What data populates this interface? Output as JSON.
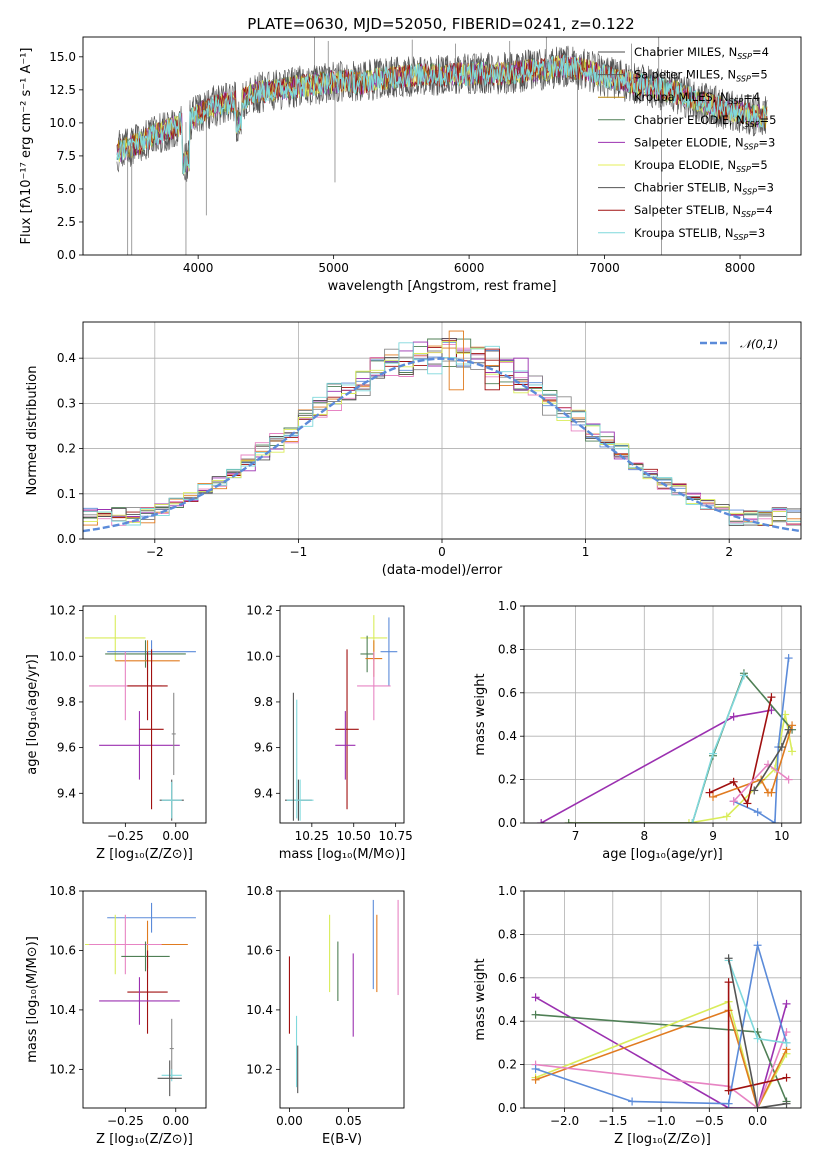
{
  "figure": {
    "title": "PLATE=0630, MJD=52050, FIBERID=0241, z=0.122"
  },
  "chart_data": [
    {
      "id": "spectrum",
      "type": "line",
      "xlabel": "wavelength [Angstrom, rest frame]",
      "ylabel": "Flux [fλ10⁻¹⁷ erg cm⁻² s⁻¹ A⁻¹]",
      "xlim": [
        3150,
        8450
      ],
      "ylim": [
        0,
        16.5
      ],
      "xticks": [
        4000,
        5000,
        6000,
        7000,
        8000
      ],
      "yticks": [
        0.0,
        2.5,
        5.0,
        7.5,
        10.0,
        12.5,
        15.0
      ],
      "grid": false,
      "legend_position": "upper-right",
      "series": [
        {
          "name": "Chabrier MILES, N",
          "sub": "SSP",
          "suffix": "=4",
          "color": "#4b4b4b"
        },
        {
          "name": "Salpeter MILES, N",
          "sub": "SSP",
          "suffix": "=5",
          "color": "#5a5a5a"
        },
        {
          "name": "Kroupa MILES, N",
          "sub": "SSP",
          "suffix": "=4",
          "color": "#b8860b"
        },
        {
          "name": "Chabrier ELODIE, N",
          "sub": "SSP",
          "suffix": "=5",
          "color": "#4f7f55"
        },
        {
          "name": "Salpeter ELODIE, N",
          "sub": "SSP",
          "suffix": "=3",
          "color": "#9b30b0"
        },
        {
          "name": "Kroupa ELODIE, N",
          "sub": "SSP",
          "suffix": "=5",
          "color": "#e5ef5a"
        },
        {
          "name": "Chabrier STELIB, N",
          "sub": "SSP",
          "suffix": "=3",
          "color": "#555555"
        },
        {
          "name": "Salpeter STELIB, N",
          "sub": "SSP",
          "suffix": "=4",
          "color": "#a01010"
        },
        {
          "name": "Kroupa STELIB, N",
          "sub": "SSP",
          "suffix": "=3",
          "color": "#7fd8dc"
        }
      ],
      "continuum": [
        [
          3400,
          7.8
        ],
        [
          3500,
          8.2
        ],
        [
          3600,
          8.6
        ],
        [
          3700,
          9.2
        ],
        [
          3800,
          9.6
        ],
        [
          3900,
          10.0
        ],
        [
          4000,
          10.6
        ],
        [
          4100,
          11.2
        ],
        [
          4200,
          11.5
        ],
        [
          4300,
          11.6
        ],
        [
          4400,
          12.2
        ],
        [
          4500,
          12.4
        ],
        [
          4600,
          12.5
        ],
        [
          4700,
          12.7
        ],
        [
          4800,
          12.8
        ],
        [
          4900,
          13.0
        ],
        [
          5000,
          13.1
        ],
        [
          5100,
          13.2
        ],
        [
          5200,
          13.0
        ],
        [
          5300,
          13.3
        ],
        [
          5400,
          13.4
        ],
        [
          5500,
          13.5
        ],
        [
          5600,
          13.6
        ],
        [
          5700,
          13.7
        ],
        [
          5800,
          13.6
        ],
        [
          5900,
          13.7
        ],
        [
          6000,
          13.7
        ],
        [
          6100,
          13.8
        ],
        [
          6200,
          13.7
        ],
        [
          6300,
          13.8
        ],
        [
          6400,
          13.9
        ],
        [
          6500,
          14.0
        ],
        [
          6600,
          14.1
        ],
        [
          6700,
          14.3
        ],
        [
          6800,
          14.1
        ],
        [
          6900,
          13.9
        ],
        [
          7000,
          13.5
        ],
        [
          7100,
          13.3
        ],
        [
          7200,
          13.0
        ],
        [
          7300,
          12.8
        ],
        [
          7400,
          12.6
        ],
        [
          7500,
          12.4
        ],
        [
          7600,
          12.0
        ],
        [
          7700,
          11.6
        ],
        [
          7800,
          11.3
        ],
        [
          7900,
          11.0
        ],
        [
          8000,
          10.8
        ],
        [
          8100,
          10.6
        ],
        [
          8200,
          10.4
        ]
      ],
      "spikes": [
        [
          3480,
          0
        ],
        [
          3510,
          0
        ],
        [
          3910,
          0
        ],
        [
          4060,
          3.0
        ],
        [
          4860,
          16.5
        ],
        [
          4960,
          16.2
        ],
        [
          5010,
          5.5
        ],
        [
          5580,
          16.3
        ],
        [
          5900,
          16.0
        ],
        [
          6300,
          16.2
        ],
        [
          6570,
          16.5
        ],
        [
          6580,
          14.7
        ],
        [
          6800,
          0
        ],
        [
          7200,
          16.0
        ],
        [
          7400,
          16.5
        ],
        [
          7420,
          0
        ]
      ]
    },
    {
      "id": "residuals",
      "type": "step",
      "xlabel": "(data-model)/error",
      "ylabel": "Normed distribution",
      "xlim": [
        -2.5,
        2.5
      ],
      "ylim": [
        0,
        0.48
      ],
      "xticks": [
        -2,
        -1,
        0,
        1,
        2
      ],
      "yticks": [
        0.0,
        0.1,
        0.2,
        0.3,
        0.4
      ],
      "grid": true,
      "legend_position": "upper-right",
      "reference": {
        "label": "𝒩(0,1)",
        "color": "#5b8bd9",
        "mean": 0,
        "sd": 1
      },
      "bin_width": 0.1,
      "series_colors": [
        "#5b8bd9",
        "#e07b20",
        "#4f7f55",
        "#a01010",
        "#9b30b0",
        "#8a8a8a",
        "#e784c3",
        "#555555",
        "#d9ec5a",
        "#7fd8dc"
      ],
      "peak_spikes": [
        [
          0.1,
          0.46
        ],
        [
          0.35,
          0.42
        ],
        [
          0.55,
          0.4
        ]
      ]
    },
    {
      "id": "age-vs-Z",
      "type": "errorbar",
      "xlabel": "Z [log₁₀(Z/Z⊙)]",
      "ylabel": "age  [log₁₀(age/yr)]",
      "xlim": [
        -0.46,
        0.15
      ],
      "ylim": [
        9.27,
        10.22
      ],
      "xticks": [
        -0.25,
        0.0
      ],
      "yticks": [
        9.4,
        9.6,
        9.8,
        10.0,
        10.2
      ],
      "grid": false,
      "points": [
        {
          "x": -0.3,
          "y": 10.08,
          "xerr": 0.15,
          "yerr": 0.1,
          "color": "#d9ec5a"
        },
        {
          "x": -0.12,
          "y": 10.02,
          "xerr": 0.22,
          "yerr": 0.05,
          "color": "#5b8bd9"
        },
        {
          "x": -0.15,
          "y": 10.01,
          "xerr": 0.2,
          "yerr": 0.06,
          "color": "#4f7f55"
        },
        {
          "x": -0.14,
          "y": 9.98,
          "xerr": 0.16,
          "yerr": 0.09,
          "color": "#e07b20"
        },
        {
          "x": -0.25,
          "y": 9.87,
          "xerr": 0.18,
          "yerr": 0.15,
          "color": "#e784c3"
        },
        {
          "x": -0.14,
          "y": 9.87,
          "xerr": 0.1,
          "yerr": 0.15,
          "color": "#a01010"
        },
        {
          "x": -0.18,
          "y": 9.61,
          "xerr": 0.2,
          "yerr": 0.15,
          "color": "#9b30b0"
        },
        {
          "x": -0.12,
          "y": 9.68,
          "xerr": 0.06,
          "yerr": 0.35,
          "color": "#a01010"
        },
        {
          "x": -0.02,
          "y": 9.37,
          "xerr": 0.06,
          "yerr": 0.09,
          "color": "#555555"
        },
        {
          "x": -0.02,
          "y": 9.37,
          "xerr": 0.05,
          "yerr": 0.08,
          "color": "#7fd8dc"
        },
        {
          "x": -0.01,
          "y": 9.66,
          "xerr": 0.01,
          "yerr": 0.18,
          "color": "#8a8a8a"
        }
      ]
    },
    {
      "id": "age-vs-mass",
      "type": "errorbar",
      "xlabel": "mass [log₁₀(M/M⊙)]",
      "ylabel": "",
      "xlim": [
        10.06,
        10.8
      ],
      "ylim": [
        9.27,
        10.22
      ],
      "xticks": [
        10.25,
        10.5,
        10.75
      ],
      "yticks": [
        9.4,
        9.6,
        9.8,
        10.0,
        10.2
      ],
      "grid": false,
      "points": [
        {
          "x": 10.62,
          "y": 10.08,
          "xerr": 0.08,
          "yerr": 0.1,
          "color": "#d9ec5a"
        },
        {
          "x": 10.71,
          "y": 10.02,
          "xerr": 0.05,
          "yerr": 0.15,
          "color": "#5b8bd9"
        },
        {
          "x": 10.58,
          "y": 10.01,
          "xerr": 0.04,
          "yerr": 0.08,
          "color": "#4f7f55"
        },
        {
          "x": 10.62,
          "y": 9.99,
          "xerr": 0.05,
          "yerr": 0.08,
          "color": "#e07b20"
        },
        {
          "x": 10.62,
          "y": 9.87,
          "xerr": 0.1,
          "yerr": 0.15,
          "color": "#e784c3"
        },
        {
          "x": 10.46,
          "y": 9.68,
          "xerr": 0.07,
          "yerr": 0.35,
          "color": "#a01010"
        },
        {
          "x": 10.45,
          "y": 9.61,
          "xerr": 0.06,
          "yerr": 0.15,
          "color": "#9b30b0"
        },
        {
          "x": 10.17,
          "y": 9.37,
          "xerr": 0.08,
          "yerr": 0.09,
          "color": "#555555"
        },
        {
          "x": 10.18,
          "y": 9.37,
          "xerr": 0.08,
          "yerr": 0.09,
          "color": "#7fd8dc"
        },
        {
          "x": 10.14,
          "y": 9.56,
          "xerr": 0.002,
          "yerr": 0.28,
          "color": "#555555"
        },
        {
          "x": 10.16,
          "y": 9.55,
          "xerr": 0.002,
          "yerr": 0.26,
          "color": "#7fd8dc"
        }
      ]
    },
    {
      "id": "mass-weight-vs-age",
      "type": "line",
      "xlabel": "age  [log₁₀(age/yr)]",
      "ylabel": "mass weight",
      "xlim": [
        6.25,
        10.28
      ],
      "ylim": [
        0,
        1.0
      ],
      "xticks": [
        7,
        8,
        9,
        10
      ],
      "yticks": [
        0.0,
        0.2,
        0.4,
        0.6,
        0.8,
        1.0
      ],
      "grid": true,
      "series": [
        {
          "color": "#9b30b0",
          "x": [
            6.5,
            9.3,
            9.85
          ],
          "y": [
            0.0,
            0.49,
            0.52
          ]
        },
        {
          "color": "#d9ec5a",
          "x": [
            6.9,
            8.65,
            9.2,
            9.9,
            10.05,
            10.15
          ],
          "y": [
            0.0,
            0.0,
            0.03,
            0.25,
            0.5,
            0.33
          ]
        },
        {
          "color": "#4f7f55",
          "x": [
            6.9,
            8.7,
            9.0,
            9.45,
            10.15
          ],
          "y": [
            0.0,
            0.0,
            0.31,
            0.69,
            0.43
          ]
        },
        {
          "color": "#7fd8dc",
          "x": [
            8.7,
            9.0,
            9.45
          ],
          "y": [
            0.0,
            0.32,
            0.68
          ]
        },
        {
          "color": "#5b8bd9",
          "x": [
            9.3,
            9.65,
            9.9,
            9.95,
            10.1
          ],
          "y": [
            0.1,
            0.05,
            0.0,
            0.35,
            0.76
          ]
        },
        {
          "color": "#a01010",
          "x": [
            8.95,
            9.3,
            9.5,
            9.85
          ],
          "y": [
            0.14,
            0.19,
            0.09,
            0.58
          ]
        },
        {
          "color": "#e07b20",
          "x": [
            9.0,
            9.7,
            9.8,
            9.85,
            10.15
          ],
          "y": [
            0.12,
            0.2,
            0.14,
            0.14,
            0.45
          ]
        },
        {
          "color": "#e784c3",
          "x": [
            9.3,
            9.8,
            10.1
          ],
          "y": [
            0.1,
            0.27,
            0.2
          ]
        },
        {
          "color": "#555555",
          "x": [
            9.6,
            10.0,
            10.1
          ],
          "y": [
            0.15,
            0.35,
            0.43
          ]
        }
      ]
    },
    {
      "id": "mass-vs-Z",
      "type": "errorbar",
      "xlabel": "Z [log₁₀(Z/Z⊙)]",
      "ylabel": "mass [log₁₀(M/M⊙)]",
      "xlim": [
        -0.46,
        0.15
      ],
      "ylim": [
        10.07,
        10.8
      ],
      "xticks": [
        -0.25,
        0.0
      ],
      "yticks": [
        10.2,
        10.4,
        10.6,
        10.8
      ],
      "grid": false,
      "points": [
        {
          "x": -0.12,
          "y": 10.71,
          "xerr": 0.22,
          "yerr": 0.05,
          "color": "#5b8bd9"
        },
        {
          "x": -0.3,
          "y": 10.62,
          "xerr": 0.15,
          "yerr": 0.1,
          "color": "#d9ec5a"
        },
        {
          "x": -0.14,
          "y": 10.62,
          "xerr": 0.2,
          "yerr": 0.08,
          "color": "#e07b20"
        },
        {
          "x": -0.25,
          "y": 10.62,
          "xerr": 0.18,
          "yerr": 0.1,
          "color": "#e784c3"
        },
        {
          "x": -0.15,
          "y": 10.58,
          "xerr": 0.12,
          "yerr": 0.05,
          "color": "#4f7f55"
        },
        {
          "x": -0.14,
          "y": 10.46,
          "xerr": 0.1,
          "yerr": 0.14,
          "color": "#a01010"
        },
        {
          "x": -0.18,
          "y": 10.43,
          "xerr": 0.2,
          "yerr": 0.08,
          "color": "#9b30b0"
        },
        {
          "x": -0.02,
          "y": 10.27,
          "xerr": 0.01,
          "yerr": 0.1,
          "color": "#8a8a8a"
        },
        {
          "x": -0.02,
          "y": 10.18,
          "xerr": 0.05,
          "yerr": 0.02,
          "color": "#7fd8dc"
        },
        {
          "x": -0.03,
          "y": 10.17,
          "xerr": 0.06,
          "yerr": 0.06,
          "color": "#555555"
        }
      ]
    },
    {
      "id": "mass-vs-EBV",
      "type": "errorbar",
      "xlabel": "E(B-V)",
      "ylabel": "",
      "xlim": [
        -0.008,
        0.097
      ],
      "ylim": [
        10.07,
        10.8
      ],
      "xticks": [
        0.0,
        0.05
      ],
      "yticks": [
        10.2,
        10.4,
        10.6,
        10.8
      ],
      "grid": false,
      "points": [
        {
          "x": 0.0,
          "y": 10.45,
          "xerr": 0,
          "yerr": 0.13,
          "color": "#a01010"
        },
        {
          "x": 0.006,
          "y": 10.26,
          "xerr": 0,
          "yerr": 0.12,
          "color": "#7fd8dc"
        },
        {
          "x": 0.007,
          "y": 10.2,
          "xerr": 0,
          "yerr": 0.08,
          "color": "#555555"
        },
        {
          "x": 0.034,
          "y": 10.59,
          "xerr": 0,
          "yerr": 0.13,
          "color": "#d9ec5a"
        },
        {
          "x": 0.041,
          "y": 10.53,
          "xerr": 0,
          "yerr": 0.1,
          "color": "#4f7f55"
        },
        {
          "x": 0.054,
          "y": 10.45,
          "xerr": 0,
          "yerr": 0.14,
          "color": "#9b30b0"
        },
        {
          "x": 0.071,
          "y": 10.62,
          "xerr": 0,
          "yerr": 0.15,
          "color": "#5b8bd9"
        },
        {
          "x": 0.074,
          "y": 10.59,
          "xerr": 0,
          "yerr": 0.13,
          "color": "#e07b20"
        },
        {
          "x": 0.092,
          "y": 10.61,
          "xerr": 0,
          "yerr": 0.16,
          "color": "#e784c3"
        }
      ]
    },
    {
      "id": "mass-weight-vs-Z",
      "type": "line",
      "xlabel": "Z [log₁₀(Z/Z⊙)]",
      "ylabel": "mass weight",
      "xlim": [
        -2.42,
        0.45
      ],
      "ylim": [
        0,
        1.0
      ],
      "xticks": [
        -2.0,
        -1.5,
        -1.0,
        -0.5,
        0.0
      ],
      "yticks": [
        0.0,
        0.2,
        0.4,
        0.6,
        0.8,
        1.0
      ],
      "grid": true,
      "series": [
        {
          "color": "#9b30b0",
          "x": [
            -2.3,
            -0.3,
            0.0,
            0.3
          ],
          "y": [
            0.51,
            0.0,
            0.0,
            0.48
          ]
        },
        {
          "color": "#4f7f55",
          "x": [
            -2.3,
            0.0,
            0.3
          ],
          "y": [
            0.43,
            0.35,
            0.03
          ]
        },
        {
          "color": "#d9ec5a",
          "x": [
            -2.3,
            -0.3,
            0.0,
            0.3
          ],
          "y": [
            0.14,
            0.49,
            0.0,
            0.25
          ]
        },
        {
          "color": "#e07b20",
          "x": [
            -2.3,
            -0.3,
            0.0,
            0.3
          ],
          "y": [
            0.13,
            0.45,
            0.0,
            0.27
          ]
        },
        {
          "color": "#e784c3",
          "x": [
            -2.3,
            -0.3,
            0.0,
            0.3
          ],
          "y": [
            0.2,
            0.1,
            0.0,
            0.35
          ]
        },
        {
          "color": "#5b8bd9",
          "x": [
            -2.3,
            -1.3,
            -0.3,
            0.0,
            0.3
          ],
          "y": [
            0.18,
            0.03,
            0.02,
            0.75,
            0.3
          ]
        },
        {
          "color": "#a01010",
          "x": [
            -0.3,
            -0.3,
            0.3
          ],
          "y": [
            0.58,
            0.08,
            0.14
          ]
        },
        {
          "color": "#7fd8dc",
          "x": [
            -0.3,
            0.0,
            0.3
          ],
          "y": [
            0.68,
            0.32,
            0.3
          ]
        },
        {
          "color": "#555555",
          "x": [
            -0.3,
            0.0,
            0.3
          ],
          "y": [
            0.69,
            0.0,
            0.02
          ]
        }
      ]
    }
  ]
}
